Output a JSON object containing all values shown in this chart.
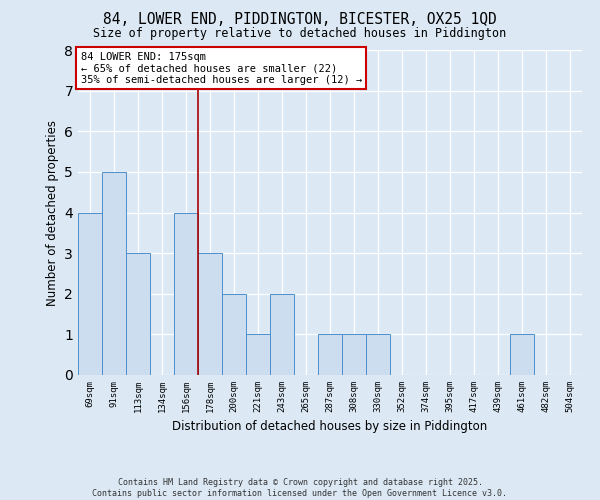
{
  "title": "84, LOWER END, PIDDINGTON, BICESTER, OX25 1QD",
  "subtitle": "Size of property relative to detached houses in Piddington",
  "xlabel": "Distribution of detached houses by size in Piddington",
  "ylabel": "Number of detached properties",
  "categories": [
    "69sqm",
    "91sqm",
    "113sqm",
    "134sqm",
    "156sqm",
    "178sqm",
    "200sqm",
    "221sqm",
    "243sqm",
    "265sqm",
    "287sqm",
    "308sqm",
    "330sqm",
    "352sqm",
    "374sqm",
    "395sqm",
    "417sqm",
    "439sqm",
    "461sqm",
    "482sqm",
    "504sqm"
  ],
  "values": [
    4,
    5,
    3,
    0,
    4,
    3,
    2,
    1,
    2,
    0,
    1,
    1,
    1,
    0,
    0,
    0,
    0,
    0,
    1,
    0,
    0
  ],
  "bar_color": "#ccddef",
  "bar_edge_color": "#4d8fcc",
  "red_line_x": 4.5,
  "annotation_text": "84 LOWER END: 175sqm\n← 65% of detached houses are smaller (22)\n35% of semi-detached houses are larger (12) →",
  "annotation_box_facecolor": "#ffffff",
  "annotation_box_edgecolor": "#cc0000",
  "footer_line1": "Contains HM Land Registry data © Crown copyright and database right 2025.",
  "footer_line2": "Contains public sector information licensed under the Open Government Licence v3.0.",
  "ylim": [
    0,
    8
  ],
  "yticks": [
    0,
    1,
    2,
    3,
    4,
    5,
    6,
    7,
    8
  ],
  "fig_facecolor": "#dce9f5",
  "ax_facecolor": "#dce9f5"
}
